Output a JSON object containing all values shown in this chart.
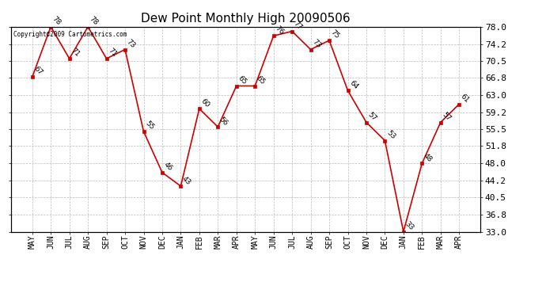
{
  "title": "Dew Point Monthly High 20090506",
  "months": [
    "MAY",
    "JUN",
    "JUL",
    "AUG",
    "SEP",
    "OCT",
    "NOV",
    "DEC",
    "JAN",
    "FEB",
    "MAR",
    "APR",
    "MAY",
    "JUN",
    "JUL",
    "AUG",
    "SEP",
    "OCT",
    "NOV",
    "DEC",
    "JAN",
    "FEB",
    "MAR",
    "APR"
  ],
  "values": [
    67,
    78,
    71,
    78,
    71,
    73,
    55,
    46,
    43,
    60,
    56,
    65,
    65,
    76,
    77,
    73,
    75,
    64,
    57,
    53,
    33,
    48,
    57,
    61
  ],
  "line_color": "#cc0000",
  "marker_color": "#cc0000",
  "bg_color": "#ffffff",
  "grid_color": "#bbbbbb",
  "ylim_min": 33.0,
  "ylim_max": 78.0,
  "yticks": [
    33.0,
    36.8,
    40.5,
    44.2,
    48.0,
    51.8,
    55.5,
    59.2,
    63.0,
    66.8,
    70.5,
    74.2,
    78.0
  ],
  "copyright_text": "Copyright©2009 Cartometrics.com",
  "title_fontsize": 11,
  "label_fontsize": 6.5,
  "tick_fontsize": 7,
  "ytick_fontsize": 8
}
